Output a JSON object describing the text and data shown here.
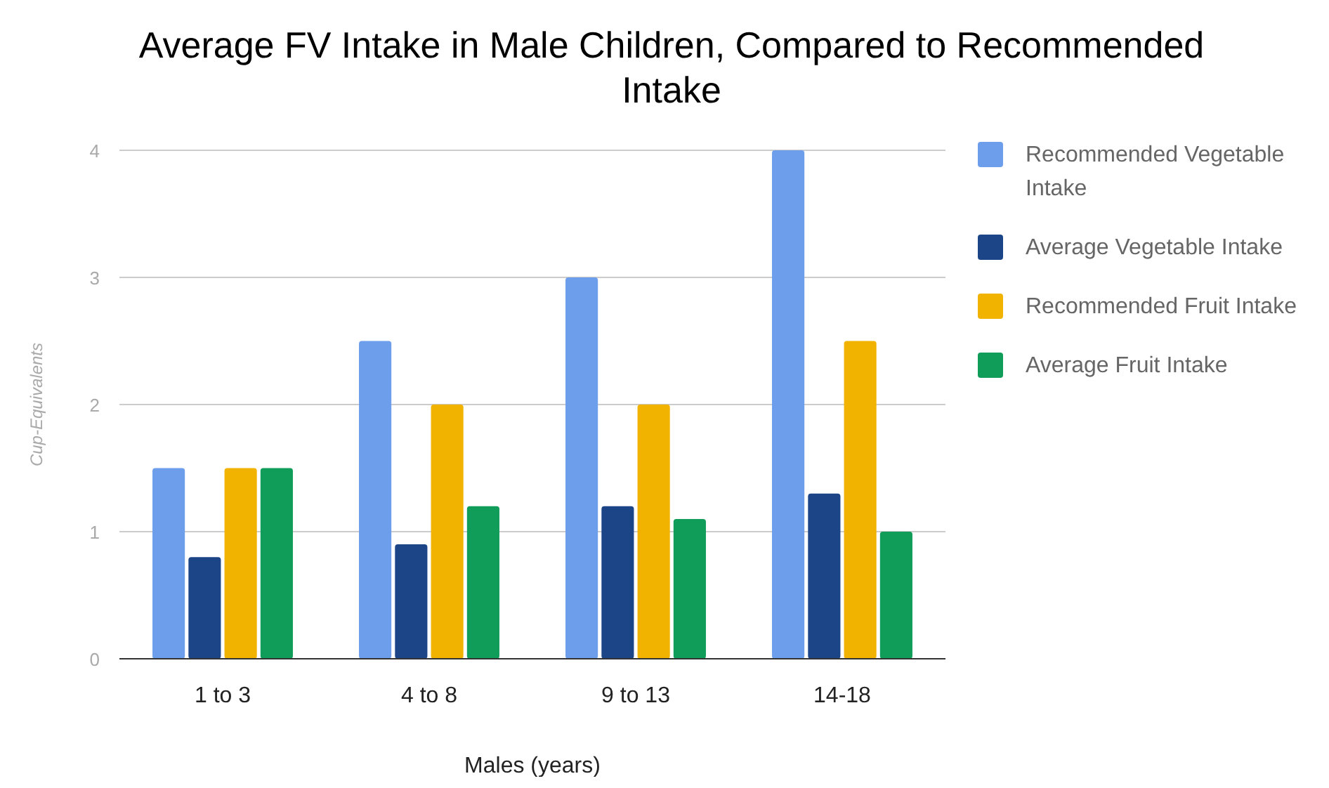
{
  "chart_data": {
    "type": "bar",
    "title": "Average FV Intake in Male Children, Compared to Recommended Intake",
    "xlabel": "Males (years)",
    "ylabel": "Cup-Equivalents",
    "categories": [
      "1 to 3",
      "4 to 8",
      "9 to 13",
      "14-18"
    ],
    "series": [
      {
        "name": "Recommended Vegetable Intake",
        "color": "#6d9eeb",
        "values": [
          1.5,
          2.5,
          3.0,
          4.0
        ]
      },
      {
        "name": "Average Vegetable Intake",
        "color": "#1c4587",
        "values": [
          0.8,
          0.9,
          1.2,
          1.3
        ]
      },
      {
        "name": "Recommended Fruit Intake",
        "color": "#f1b300",
        "values": [
          1.5,
          2.0,
          2.0,
          2.5
        ]
      },
      {
        "name": "Average Fruit Intake",
        "color": "#109d59",
        "values": [
          1.5,
          1.2,
          1.1,
          1.0
        ]
      }
    ],
    "ylim": [
      0,
      4
    ],
    "yticks": [
      0,
      1,
      2,
      3,
      4
    ],
    "grid": true,
    "legend": "right"
  }
}
